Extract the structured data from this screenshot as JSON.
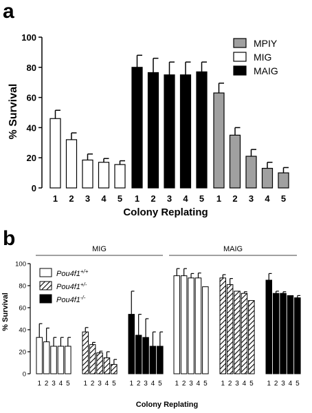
{
  "chart_data": [
    {
      "type": "bar",
      "panel_label": "a",
      "xlabel": "Colony Replating",
      "ylabel": "% Survival",
      "ylim": [
        0,
        100
      ],
      "yticks": [
        0,
        20,
        40,
        60,
        80,
        100
      ],
      "categories": [
        "1",
        "2",
        "3",
        "4",
        "5"
      ],
      "legend_position": "top-right",
      "group_order": [
        "MIG",
        "MAIG",
        "MPIY"
      ],
      "series": [
        {
          "name": "MPIY",
          "fill": "#a0a0a0",
          "values": [
            63,
            35,
            21,
            13,
            10
          ],
          "errors": [
            6.5,
            5,
            4.5,
            4,
            3.5
          ]
        },
        {
          "name": "MIG",
          "fill": "#ffffff",
          "values": [
            46,
            32,
            18.5,
            17,
            15.5
          ],
          "errors": [
            5.5,
            4.5,
            4,
            2.5,
            2.5
          ]
        },
        {
          "name": "MAIG",
          "fill": "#000000",
          "values": [
            80,
            76.5,
            75,
            75,
            77
          ],
          "errors": [
            8,
            9.5,
            8.5,
            8.5,
            6.5
          ]
        }
      ]
    },
    {
      "type": "bar",
      "panel_label": "b",
      "xlabel": "Colony Replating",
      "ylabel": "% Survival",
      "ylim": [
        0,
        100
      ],
      "yticks": [
        0,
        20,
        40,
        60,
        80,
        100
      ],
      "categories": [
        "1",
        "2",
        "3",
        "4",
        "5"
      ],
      "legend_position": "top-left",
      "groups": [
        {
          "label": "MIG",
          "series": [
            {
              "name": "Pou4f1+/+",
              "values": [
                33,
                29,
                25,
                25,
                25
              ],
              "errors": [
                12.5,
                12.5,
                8,
                8,
                8
              ]
            },
            {
              "name": "Pou4f1+/-",
              "values": [
                38,
                26.5,
                19,
                14.5,
                8.5
              ],
              "errors": [
                4,
                2,
                1.5,
                5.5,
                4.5
              ]
            },
            {
              "name": "Pou4f1-/-",
              "values": [
                54,
                35,
                33,
                25,
                25
              ],
              "errors": [
                21,
                19,
                17,
                13,
                13
              ]
            }
          ]
        },
        {
          "label": "MAIG",
          "series": [
            {
              "name": "Pou4f1+/+",
              "values": [
                89,
                89,
                87,
                87,
                79
              ],
              "errors": [
                6.5,
                6.5,
                4,
                4.5,
                0
              ]
            },
            {
              "name": "Pou4f1+/-",
              "values": [
                87,
                81,
                75,
                73,
                66.5
              ],
              "errors": [
                3,
                5.5,
                0,
                1.5,
                0
              ]
            },
            {
              "name": "Pou4f1-/-",
              "values": [
                85,
                73,
                73,
                71,
                69
              ],
              "errors": [
                6,
                2,
                1.5,
                0,
                2
              ]
            }
          ]
        }
      ],
      "legend": [
        {
          "base": "Pou4f1",
          "sup": "+/+",
          "pattern": "open"
        },
        {
          "base": "Pou4f1",
          "sup": "+/-",
          "pattern": "hatched"
        },
        {
          "base": "Pou4f1",
          "sup": "-/-",
          "pattern": "solid"
        }
      ]
    }
  ]
}
